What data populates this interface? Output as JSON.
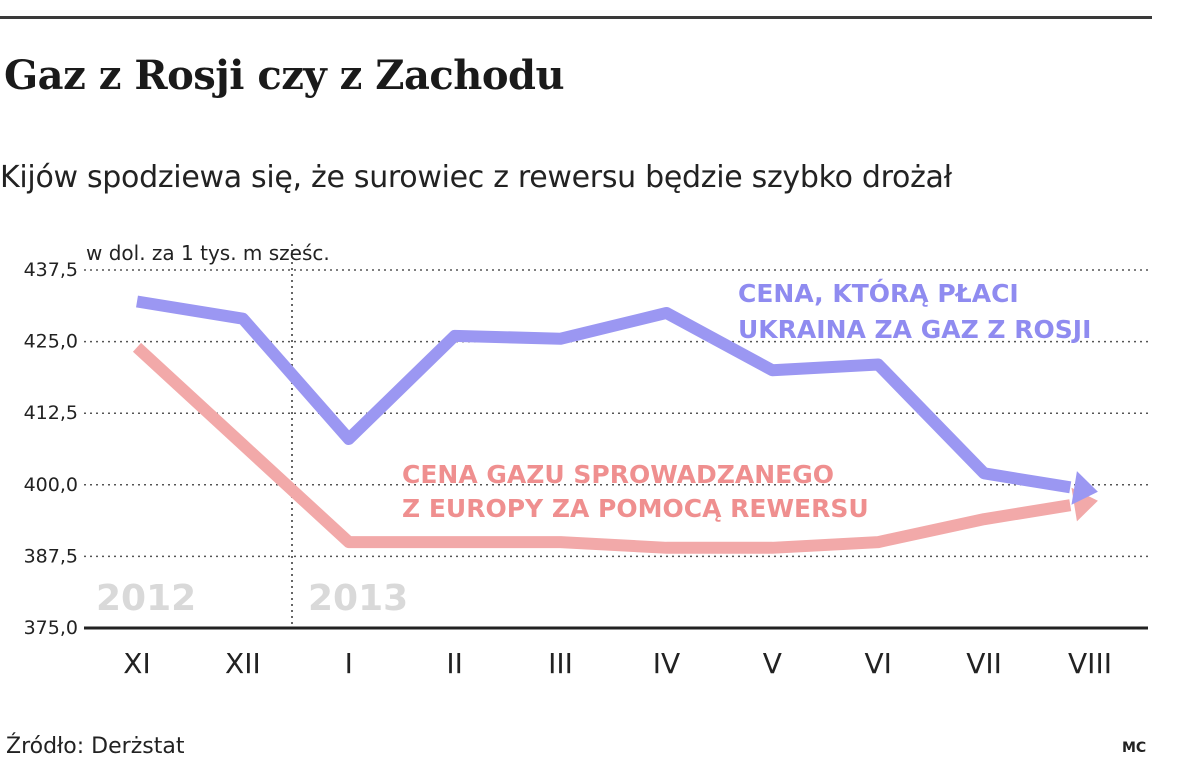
{
  "header": {
    "title": "Gaz z Rosji czy z Zachodu",
    "subtitle": "Kijów spodziewa się, że surowiec z rewersu będzie szybko drożał"
  },
  "footer": {
    "source": "Źródło: Derżstat",
    "credit": "MC"
  },
  "chart_data": {
    "type": "line",
    "ylabel": "w dol. za 1 tys. m sześc.",
    "ylim": [
      375,
      437.5
    ],
    "yticks": [
      "437,5",
      "425,0",
      "412,5",
      "400,0",
      "387,5",
      "375,0"
    ],
    "categories": [
      "XI",
      "XII",
      "I",
      "II",
      "III",
      "IV",
      "V",
      "VI",
      "VII",
      "VIII"
    ],
    "year_labels": [
      "2012",
      "2013"
    ],
    "grid": "horizontal dotted",
    "series": [
      {
        "name": "CENA, KTÓRĄ PŁACI UKRAINA ZA GAZ Z ROSJI",
        "label_lines": [
          "CENA, KTÓRĄ PŁACI",
          "UKRAINA ZA GAZ Z ROSJI"
        ],
        "color": "#9b97f2",
        "values": [
          432,
          429,
          408,
          426,
          425.5,
          430,
          420,
          421,
          402,
          399
        ]
      },
      {
        "name": "CENA GAZU SPROWADZANEGO Z EUROPY ZA POMOCĄ REWERSU",
        "label_lines": [
          "CENA GAZU SPROWADZANEGO",
          "Z EUROPY ZA POMOCĄ REWERSU"
        ],
        "color": "#f2a9a9",
        "values": [
          424,
          407,
          390,
          390,
          390,
          389,
          389,
          390,
          394,
          397
        ]
      }
    ]
  }
}
